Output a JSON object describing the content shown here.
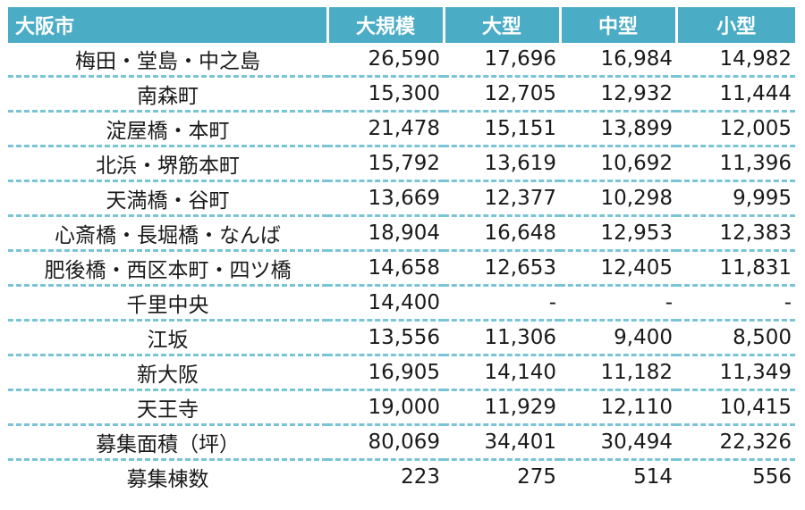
{
  "header": {
    "city": "大阪市",
    "columns": [
      "大規模",
      "大型",
      "中型",
      "小型"
    ]
  },
  "rows": [
    {
      "area": "梅田・堂島・中之島",
      "values": [
        "26,590",
        "17,696",
        "16,984",
        "14,982"
      ]
    },
    {
      "area": "南森町",
      "values": [
        "15,300",
        "12,705",
        "12,932",
        "11,444"
      ]
    },
    {
      "area": "淀屋橋・本町",
      "values": [
        "21,478",
        "15,151",
        "13,899",
        "12,005"
      ]
    },
    {
      "area": "北浜・堺筋本町",
      "values": [
        "15,792",
        "13,619",
        "10,692",
        "11,396"
      ]
    },
    {
      "area": "天満橋・谷町",
      "values": [
        "13,669",
        "12,377",
        "10,298",
        "9,995"
      ]
    },
    {
      "area": "心斎橋・長堀橋・なんば",
      "values": [
        "18,904",
        "16,648",
        "12,953",
        "12,383"
      ]
    },
    {
      "area": "肥後橋・西区本町・四ツ橋",
      "values": [
        "14,658",
        "12,653",
        "12,405",
        "11,831"
      ]
    },
    {
      "area": "千里中央",
      "values": [
        "14,400",
        "-",
        "-",
        "-"
      ]
    },
    {
      "area": "江坂",
      "values": [
        "13,556",
        "11,306",
        "9,400",
        "8,500"
      ]
    },
    {
      "area": "新大阪",
      "values": [
        "16,905",
        "14,140",
        "11,182",
        "11,349"
      ]
    },
    {
      "area": "天王寺",
      "values": [
        "19,000",
        "11,929",
        "12,110",
        "10,415"
      ]
    },
    {
      "area": "募集面積（坪）",
      "values": [
        "80,069",
        "34,401",
        "30,494",
        "22,326"
      ]
    },
    {
      "area": "募集棟数",
      "values": [
        "223",
        "275",
        "514",
        "556"
      ]
    }
  ]
}
